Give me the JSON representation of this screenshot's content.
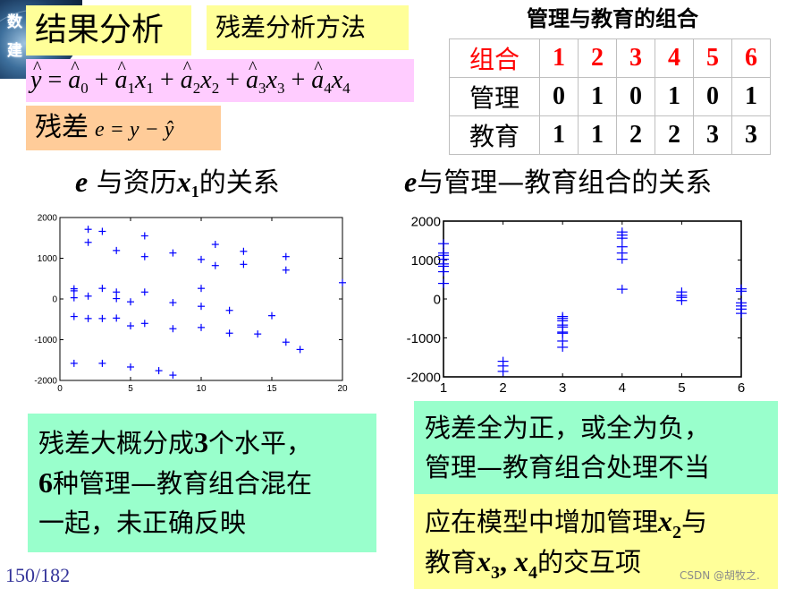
{
  "logo": {
    "chars": [
      "数",
      "建"
    ]
  },
  "header": {
    "title": "结果分析",
    "subtitle": "残差分析方法"
  },
  "formula": {
    "lhs": "y",
    "terms": [
      {
        "coef": "a",
        "sub": "0",
        "var": "",
        "vsub": ""
      },
      {
        "coef": "a",
        "sub": "1",
        "var": "x",
        "vsub": "1"
      },
      {
        "coef": "a",
        "sub": "2",
        "var": "x",
        "vsub": "2"
      },
      {
        "coef": "a",
        "sub": "3",
        "var": "x",
        "vsub": "3"
      },
      {
        "coef": "a",
        "sub": "4",
        "var": "x",
        "vsub": "4"
      }
    ],
    "text": "ŷ = â0 + â1x1 + â2x2 + â3x3 + â4x4"
  },
  "residual": {
    "label": "残差",
    "formula": "e = y − ŷ"
  },
  "combo_table": {
    "title": "管理与教育的组合",
    "header_label": "组合",
    "columns": [
      "1",
      "2",
      "3",
      "4",
      "5",
      "6"
    ],
    "rows": [
      {
        "label": "管理",
        "values": [
          "0",
          "1",
          "0",
          "1",
          "0",
          "1"
        ]
      },
      {
        "label": "教育",
        "values": [
          "1",
          "1",
          "2",
          "2",
          "3",
          "3"
        ]
      }
    ],
    "header_color": "#ff0000"
  },
  "chart_titles": {
    "left": {
      "e": "e",
      "mid": "与资历",
      "x": "x",
      "sub": "1",
      "tail": "的关系"
    },
    "right": {
      "e": "e",
      "tail": "与管理—教育组合的关系"
    }
  },
  "chart_data": [
    {
      "type": "scatter",
      "title": "e 与资历x1的关系",
      "xlabel": "",
      "ylabel": "",
      "xlim": [
        0,
        20
      ],
      "ylim": [
        -2000,
        2000
      ],
      "xticks": [
        "0",
        "5",
        "10",
        "15",
        "20"
      ],
      "yticks": [
        "2000",
        "1000",
        "0",
        "-1000",
        "-2000"
      ],
      "marker": "+",
      "color": "#0000ff",
      "points": [
        [
          1,
          250
        ],
        [
          1,
          200
        ],
        [
          1,
          30
        ],
        [
          1,
          -430
        ],
        [
          1,
          -1580
        ],
        [
          2,
          1710
        ],
        [
          2,
          1390
        ],
        [
          2,
          70
        ],
        [
          2,
          -480
        ],
        [
          3,
          1660
        ],
        [
          3,
          260
        ],
        [
          3,
          -480
        ],
        [
          3,
          -1580
        ],
        [
          4,
          1190
        ],
        [
          4,
          170
        ],
        [
          4,
          10
        ],
        [
          4,
          -470
        ],
        [
          5,
          -70
        ],
        [
          5,
          -660
        ],
        [
          5,
          -1670
        ],
        [
          6,
          1550
        ],
        [
          6,
          1040
        ],
        [
          6,
          170
        ],
        [
          6,
          -600
        ],
        [
          7,
          -1760
        ],
        [
          8,
          1130
        ],
        [
          8,
          -90
        ],
        [
          8,
          -730
        ],
        [
          8,
          -1870
        ],
        [
          10,
          970
        ],
        [
          10,
          260
        ],
        [
          10,
          -180
        ],
        [
          10,
          -700
        ],
        [
          11,
          1340
        ],
        [
          11,
          820
        ],
        [
          12,
          -280
        ],
        [
          12,
          -840
        ],
        [
          13,
          1170
        ],
        [
          13,
          850
        ],
        [
          14,
          -860
        ],
        [
          15,
          -410
        ],
        [
          16,
          1040
        ],
        [
          16,
          710
        ],
        [
          16,
          -1060
        ],
        [
          17,
          -1240
        ],
        [
          20,
          400
        ]
      ]
    },
    {
      "type": "scatter",
      "title": "e与管理—教育组合的关系",
      "xlabel": "",
      "ylabel": "",
      "xlim": [
        1,
        6
      ],
      "ylim": [
        -2000,
        2000
      ],
      "xticks": [
        "1",
        "2",
        "3",
        "4",
        "5",
        "6"
      ],
      "yticks": [
        "2000",
        "1000",
        "0",
        "-1000",
        "-2000"
      ],
      "marker": "+",
      "color": "#0000ff",
      "points": [
        [
          1,
          1420
        ],
        [
          1,
          1180
        ],
        [
          1,
          1120
        ],
        [
          1,
          1020
        ],
        [
          1,
          900
        ],
        [
          1,
          840
        ],
        [
          1,
          700
        ],
        [
          1,
          400
        ],
        [
          2,
          -1600
        ],
        [
          2,
          -1720
        ],
        [
          2,
          -1860
        ],
        [
          3,
          -450
        ],
        [
          3,
          -500
        ],
        [
          3,
          -560
        ],
        [
          3,
          -670
        ],
        [
          3,
          -720
        ],
        [
          3,
          -850
        ],
        [
          3,
          -880
        ],
        [
          3,
          -1080
        ],
        [
          3,
          -1240
        ],
        [
          4,
          1720
        ],
        [
          4,
          1640
        ],
        [
          4,
          1560
        ],
        [
          4,
          1340
        ],
        [
          4,
          1180
        ],
        [
          4,
          1020
        ],
        [
          4,
          250
        ],
        [
          5,
          180
        ],
        [
          5,
          90
        ],
        [
          5,
          40
        ],
        [
          5,
          -40
        ],
        [
          6,
          260
        ],
        [
          6,
          200
        ],
        [
          6,
          -100
        ],
        [
          6,
          -180
        ],
        [
          6,
          -260
        ],
        [
          6,
          -370
        ]
      ]
    }
  ],
  "notes": {
    "left": {
      "line1_pre": "残差大概分成",
      "line1_num": "3",
      "line1_post": "个水平，",
      "line2_num": "6",
      "line2_post": "种管理—教育组合混在",
      "line3": "一起，未正确反映"
    },
    "right_top": {
      "line1": "残差全为正，或全为负，",
      "line2": "管理—教育组合处理不当"
    },
    "right_bottom": {
      "line1_pre": "应在模型中增加管理",
      "line1_var": "x",
      "line1_sub": "2",
      "line1_post": "与",
      "line2_pre": "教育",
      "line2_var1": "x",
      "line2_sub1": "3",
      "line2_sep": ", ",
      "line2_var2": "x",
      "line2_sub2": "4",
      "line2_post": "的交互项"
    }
  },
  "footer": {
    "page": "150/182",
    "watermark": "CSDN @胡牧之."
  },
  "colors": {
    "yellow": "#ffff99",
    "pink": "#ffccff",
    "orange": "#ffcc99",
    "green": "#99ffcc",
    "marker": "#0000ff",
    "red": "#ff0000",
    "page_num": "#333399"
  }
}
